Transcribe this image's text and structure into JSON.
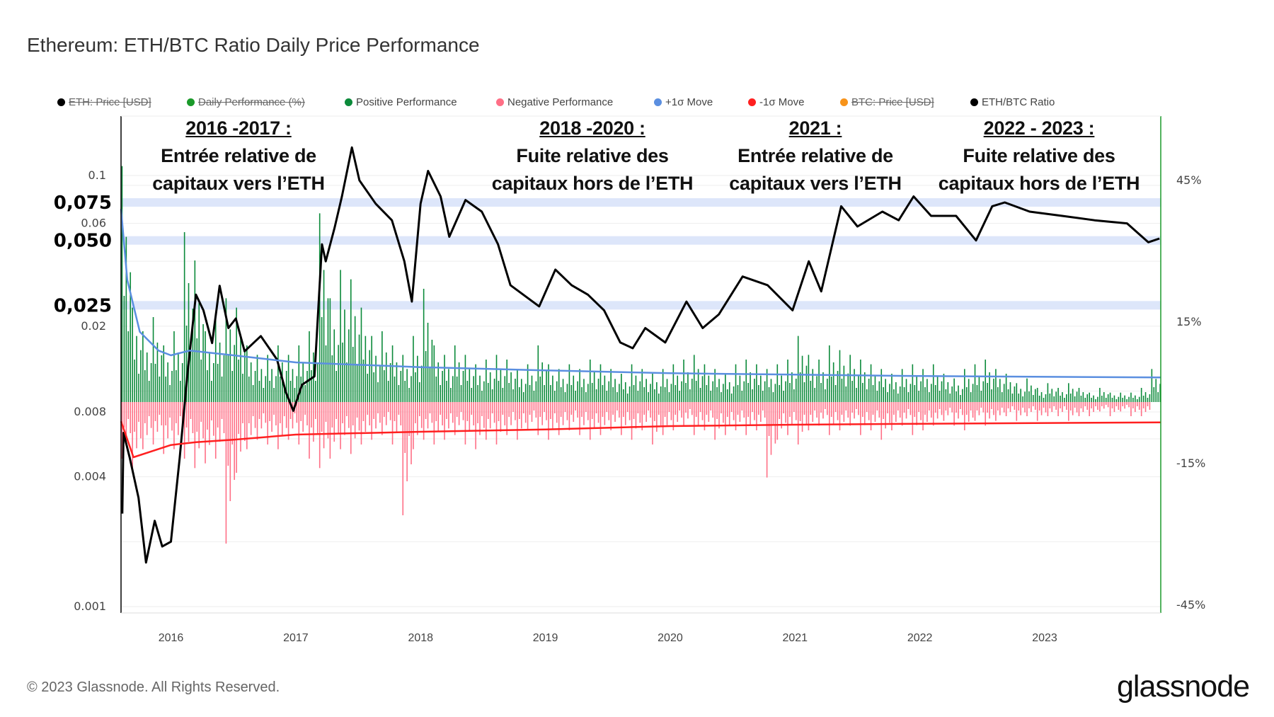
{
  "title": "Ethereum: ETH/BTC Ratio Daily Price Performance",
  "legend": [
    {
      "label": "ETH: Price [USD]",
      "color": "#000000",
      "enabled": false
    },
    {
      "label": "Daily Performance (%)",
      "color": "#1a9a2a",
      "enabled": false
    },
    {
      "label": "Positive Performance",
      "color": "#0b8a3a",
      "enabled": true
    },
    {
      "label": "Negative Performance",
      "color": "#ff6f86",
      "enabled": true
    },
    {
      "label": "+1σ Move",
      "color": "#5b8fe0",
      "enabled": true
    },
    {
      "label": "-1σ Move",
      "color": "#ff2020",
      "enabled": true
    },
    {
      "label": "BTC: Price [USD]",
      "color": "#f7931a",
      "enabled": false
    },
    {
      "label": "ETH/BTC Ratio",
      "color": "#000000",
      "enabled": true
    }
  ],
  "annotations": [
    {
      "header": "2016 -2017 :",
      "line1": "Entrée relative de",
      "line2": "capitaux vers l’ETH"
    },
    {
      "header": "2018 -2020 :",
      "line1": "Fuite relative des",
      "line2": "capitaux hors de l’ETH"
    },
    {
      "header": "2021 :",
      "line1": "Entrée relative de",
      "line2": "capitaux vers l’ETH"
    },
    {
      "header": "2022 - 2023 :",
      "line1": "Fuite relative des",
      "line2": "capitaux hors de l’ETH"
    }
  ],
  "footer": "© 2023 Glassnode. All Rights Reserved.",
  "logo": "glassnode",
  "chart_data": {
    "type": "line",
    "xlabel": "",
    "xlim": [
      2015.6,
      2023.93
    ],
    "x_ticks": [
      "2016",
      "2017",
      "2018",
      "2019",
      "2020",
      "2021",
      "2022",
      "2023"
    ],
    "left_axis": {
      "scale": "log",
      "ylim": [
        0.001,
        0.13
      ],
      "ticks": [
        "0.1",
        "0.06",
        "0.02",
        "0.008",
        "0.004",
        "0.001"
      ]
    },
    "highlight_levels": [
      {
        "value": 0.075,
        "label": "0,075"
      },
      {
        "value": 0.05,
        "label": "0,050"
      },
      {
        "value": 0.025,
        "label": "0,025"
      }
    ],
    "right_axis": {
      "scale": "linear",
      "ylim": [
        -45,
        45
      ],
      "ticks": [
        "45%",
        "15%",
        "-15%",
        "-45%"
      ]
    },
    "grid": true,
    "legend_position": "top",
    "series": [
      {
        "name": "ETH/BTC Ratio",
        "axis": "left",
        "color": "#000000",
        "points": [
          [
            2015.61,
            0.0027
          ],
          [
            2015.62,
            0.0064
          ],
          [
            2015.67,
            0.0049
          ],
          [
            2015.74,
            0.0032
          ],
          [
            2015.8,
            0.0016
          ],
          [
            2015.87,
            0.0025
          ],
          [
            2015.93,
            0.0019
          ],
          [
            2016.0,
            0.002
          ],
          [
            2016.07,
            0.0049
          ],
          [
            2016.13,
            0.0117
          ],
          [
            2016.2,
            0.028
          ],
          [
            2016.26,
            0.0237
          ],
          [
            2016.33,
            0.0167
          ],
          [
            2016.39,
            0.0308
          ],
          [
            2016.46,
            0.0196
          ],
          [
            2016.52,
            0.0217
          ],
          [
            2016.59,
            0.0153
          ],
          [
            2016.72,
            0.018
          ],
          [
            2016.85,
            0.014
          ],
          [
            2016.92,
            0.0099
          ],
          [
            2016.98,
            0.0081
          ],
          [
            2017.05,
            0.0107
          ],
          [
            2017.15,
            0.0117
          ],
          [
            2017.21,
            0.048
          ],
          [
            2017.24,
            0.04
          ],
          [
            2017.31,
            0.057
          ],
          [
            2017.37,
            0.08
          ],
          [
            2017.45,
            0.135
          ],
          [
            2017.51,
            0.095
          ],
          [
            2017.64,
            0.074
          ],
          [
            2017.77,
            0.062
          ],
          [
            2017.87,
            0.04
          ],
          [
            2017.93,
            0.026
          ],
          [
            2018.0,
            0.074
          ],
          [
            2018.06,
            0.105
          ],
          [
            2018.16,
            0.08
          ],
          [
            2018.23,
            0.052
          ],
          [
            2018.36,
            0.077
          ],
          [
            2018.49,
            0.068
          ],
          [
            2018.62,
            0.048
          ],
          [
            2018.72,
            0.031
          ],
          [
            2018.95,
            0.0247
          ],
          [
            2019.08,
            0.0366
          ],
          [
            2019.21,
            0.031
          ],
          [
            2019.34,
            0.028
          ],
          [
            2019.47,
            0.0237
          ],
          [
            2019.6,
            0.0168
          ],
          [
            2019.7,
            0.0158
          ],
          [
            2019.8,
            0.0196
          ],
          [
            2019.96,
            0.0168
          ],
          [
            2020.13,
            0.026
          ],
          [
            2020.26,
            0.0196
          ],
          [
            2020.39,
            0.0227
          ],
          [
            2020.58,
            0.034
          ],
          [
            2020.78,
            0.031
          ],
          [
            2020.98,
            0.0237
          ],
          [
            2021.11,
            0.04
          ],
          [
            2021.21,
            0.029
          ],
          [
            2021.37,
            0.072
          ],
          [
            2021.5,
            0.058
          ],
          [
            2021.7,
            0.068
          ],
          [
            2021.83,
            0.062
          ],
          [
            2021.95,
            0.08
          ],
          [
            2022.09,
            0.065
          ],
          [
            2022.29,
            0.065
          ],
          [
            2022.45,
            0.05
          ],
          [
            2022.58,
            0.072
          ],
          [
            2022.68,
            0.075
          ],
          [
            2022.88,
            0.068
          ],
          [
            2023.14,
            0.065
          ],
          [
            2023.4,
            0.062
          ],
          [
            2023.66,
            0.06
          ],
          [
            2023.83,
            0.049
          ],
          [
            2023.92,
            0.051
          ]
        ]
      },
      {
        "name": "+1σ Move",
        "axis": "right",
        "color": "#5b8fe0",
        "points": [
          [
            2015.6,
            40
          ],
          [
            2015.65,
            25
          ],
          [
            2015.75,
            14
          ],
          [
            2015.9,
            10
          ],
          [
            2016.0,
            9
          ],
          [
            2016.15,
            10
          ],
          [
            2016.5,
            9
          ],
          [
            2017.0,
            7.5
          ],
          [
            2018.0,
            6.5
          ],
          [
            2019.0,
            5.8
          ],
          [
            2020.0,
            5.2
          ],
          [
            2021.0,
            4.9
          ],
          [
            2022.0,
            4.6
          ],
          [
            2023.93,
            4.3
          ]
        ]
      },
      {
        "name": "-1σ Move",
        "axis": "right",
        "color": "#ff2020",
        "points": [
          [
            2015.6,
            -5
          ],
          [
            2015.7,
            -12.6
          ],
          [
            2016.0,
            -10
          ],
          [
            2016.2,
            -9.4
          ],
          [
            2016.5,
            -8.9
          ],
          [
            2017.0,
            -7.8
          ],
          [
            2018.0,
            -7.2
          ],
          [
            2019.0,
            -6.7
          ],
          [
            2020.0,
            -6.0
          ],
          [
            2021.0,
            -5.7
          ],
          [
            2022.0,
            -5.5
          ],
          [
            2023.93,
            -5.2
          ]
        ]
      },
      {
        "name": "Positive Performance",
        "axis": "right",
        "color": "#0b8a3a",
        "monthly_max_start": 2015.6,
        "values": [
          50,
          20,
          15,
          18,
          12,
          15,
          36,
          30,
          15,
          18,
          22,
          20,
          12,
          10,
          10,
          12,
          10,
          12,
          15,
          40,
          22,
          28,
          26,
          20,
          14,
          15,
          12,
          10,
          14,
          24,
          12,
          10,
          12,
          10,
          8,
          9,
          10,
          9,
          7,
          8,
          12,
          8,
          7,
          8,
          7,
          9,
          8,
          7,
          6,
          8,
          7,
          6,
          7,
          8,
          9,
          10,
          8,
          7,
          6,
          8,
          9,
          8,
          7,
          8,
          9,
          14,
          10,
          9,
          12,
          11,
          10,
          9,
          8,
          7,
          6,
          7,
          8,
          7,
          8,
          6,
          5,
          7,
          8,
          9,
          7,
          6,
          4,
          5,
          3,
          4,
          3,
          4,
          3,
          2,
          3,
          2,
          2,
          2,
          3,
          7
        ]
      },
      {
        "name": "Negative Performance",
        "axis": "right",
        "color": "#ff6f86",
        "monthly_min_start": 2015.6,
        "values": [
          -12,
          -14,
          -10,
          -9,
          -11,
          -10,
          -12,
          -14,
          -13,
          -12,
          -30,
          -15,
          -10,
          -8,
          -9,
          -10,
          -8,
          -9,
          -12,
          -14,
          -12,
          -10,
          -11,
          -9,
          -8,
          -7,
          -9,
          -24,
          -10,
          -8,
          -9,
          -8,
          -7,
          -9,
          -10,
          -8,
          -9,
          -7,
          -8,
          -6,
          -7,
          -8,
          -7,
          -6,
          -7,
          -8,
          -7,
          -6,
          -7,
          -8,
          -6,
          -9,
          -7,
          -6,
          -5,
          -7,
          -6,
          -8,
          -7,
          -6,
          -7,
          -6,
          -16,
          -8,
          -7,
          -9,
          -6,
          -5,
          -7,
          -6,
          -5,
          -7,
          -6,
          -8,
          -6,
          -5,
          -7,
          -6,
          -5,
          -4,
          -5,
          -6,
          -4,
          -5,
          -4,
          -3,
          -4,
          -3,
          -4,
          -3,
          -3,
          -4,
          -3,
          -3,
          -2,
          -3,
          -2,
          -3,
          -3
        ]
      }
    ]
  }
}
